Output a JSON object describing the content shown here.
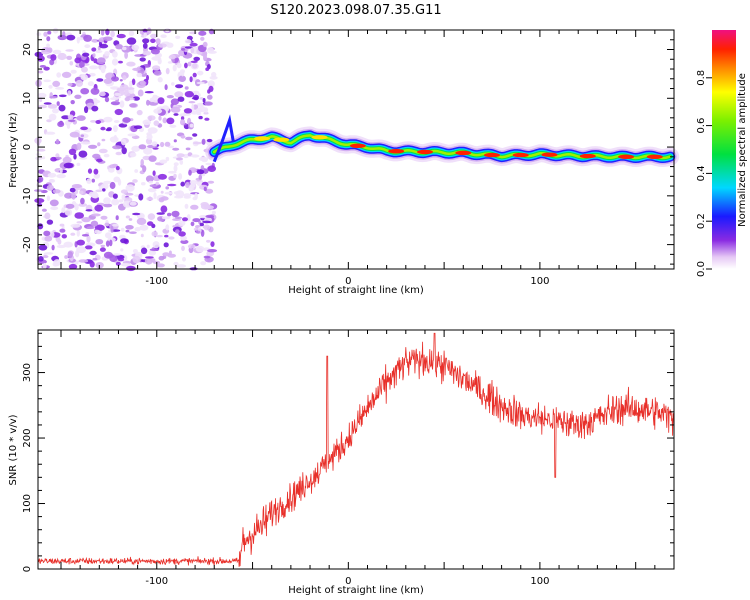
{
  "title": "S120.2023.098.07.35.G11",
  "chart_data": [
    {
      "type": "heatmap",
      "title": "S120.2023.098.07.35.G11",
      "xlabel": "Height of straight line (km)",
      "ylabel": "Frequency (Hz)",
      "xlim": [
        -162,
        170
      ],
      "ylim": [
        -25,
        24
      ],
      "x_ticks": [
        "-100",
        "0",
        "100"
      ],
      "y_ticks": [
        "-20",
        "-10",
        "0",
        "10",
        "20"
      ],
      "noise_region_x": [
        -162,
        -70
      ],
      "signal_ridge": {
        "x": [
          -70,
          -60,
          -50,
          -40,
          -30,
          -20,
          -10,
          0,
          10,
          20,
          40,
          60,
          80,
          100,
          120,
          140,
          160,
          168
        ],
        "y": [
          -1,
          0.5,
          1.5,
          2,
          1,
          2.5,
          1.5,
          0.5,
          0,
          -0.8,
          -1,
          -1.2,
          -1.8,
          -1.5,
          -1.8,
          -2,
          -2,
          -2
        ]
      },
      "colorbar": {
        "label": "Normalized spectral amplitude",
        "range": [
          0,
          1
        ],
        "ticks": [
          "0.0",
          "0.2",
          "0.4",
          "0.6",
          "0.8"
        ]
      }
    },
    {
      "type": "line",
      "xlabel": "Height of straight line (km)",
      "ylabel": "SNR (10 * v/v)",
      "xlim": [
        -162,
        170
      ],
      "ylim": [
        0,
        365
      ],
      "x_ticks": [
        "-100",
        "0",
        "100"
      ],
      "y_ticks": [
        "0",
        "100",
        "200",
        "300"
      ],
      "color": "#e8302a",
      "trend": {
        "x": [
          -162,
          -57,
          -55,
          -50,
          -45,
          -40,
          -30,
          -20,
          -10,
          0,
          10,
          20,
          30,
          40,
          50,
          60,
          70,
          80,
          90,
          100,
          110,
          120,
          130,
          140,
          150,
          160,
          170
        ],
        "y": [
          12,
          12,
          40,
          55,
          65,
          85,
          110,
          135,
          165,
          200,
          245,
          285,
          315,
          320,
          310,
          290,
          270,
          250,
          235,
          230,
          225,
          220,
          230,
          245,
          245,
          240,
          230
        ]
      }
    }
  ]
}
